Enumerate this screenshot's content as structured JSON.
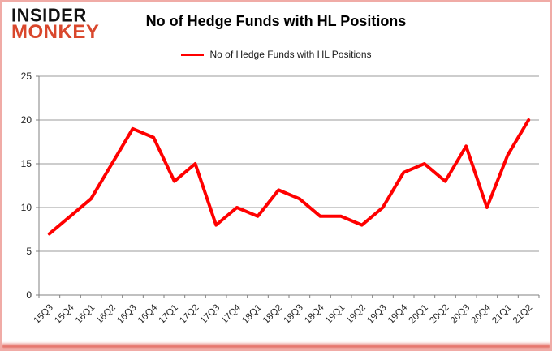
{
  "logo": {
    "line1": "INSIDER",
    "line2": "MONKEY"
  },
  "header": {
    "title": "No of Hedge Funds with HL Positions"
  },
  "legend": {
    "label": "No of Hedge Funds with HL Positions"
  },
  "colors": {
    "series_red": "#ff0000",
    "logo_red": "#d9472c",
    "axis_gray": "#808080",
    "grid_gray": "#9b9b9b",
    "frame_pink": "#f0aba6",
    "tick_label": "#262626"
  },
  "chart_data": {
    "type": "line",
    "title": "No of Hedge Funds with HL Positions",
    "categories": [
      "15Q3",
      "15Q4",
      "16Q1",
      "16Q2",
      "16Q3",
      "16Q4",
      "17Q1",
      "17Q2",
      "17Q3",
      "17Q4",
      "18Q1",
      "18Q2",
      "18Q3",
      "18Q4",
      "19Q1",
      "19Q2",
      "19Q3",
      "19Q4",
      "20Q1",
      "20Q2",
      "20Q3",
      "20Q4",
      "21Q1",
      "21Q2"
    ],
    "values": [
      7,
      9,
      11,
      15,
      19,
      18,
      13,
      15,
      8,
      10,
      9,
      12,
      11,
      9,
      9,
      8,
      10,
      14,
      15,
      13,
      17,
      10,
      16,
      20
    ],
    "series_name": "No of Hedge Funds with HL Positions",
    "series_color": "#ff0000",
    "xlabel": "",
    "ylabel": "",
    "ylim": [
      0,
      25
    ],
    "yticks": [
      0,
      5,
      10,
      15,
      20,
      25
    ],
    "grid": true,
    "legend_position": "top-center"
  }
}
